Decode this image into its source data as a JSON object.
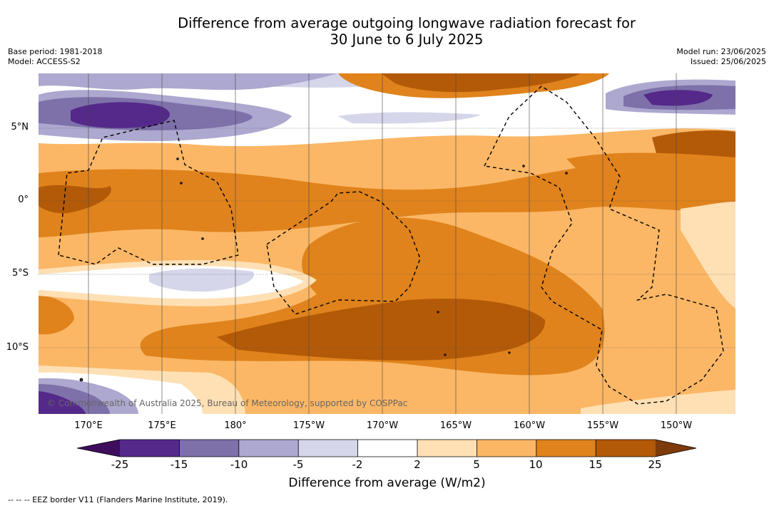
{
  "title": "Difference from average outgoing longwave radiation forecast for\n30 June to 6 July 2025",
  "left_info": [
    "Base period: 1981-2018",
    "Model: ACCESS-S2"
  ],
  "right_info": [
    "Model run: 23/06/2025",
    "Issued: 25/06/2025"
  ],
  "lat_labels": [
    "5°N",
    "0°",
    "5°S",
    "10°S"
  ],
  "lon_labels": [
    "170°E",
    "175°E",
    "180°",
    "175°W",
    "170°W",
    "165°W",
    "160°W",
    "155°W",
    "150°W"
  ],
  "colorbar": {
    "ticks": [
      "-25",
      "-15",
      "-10",
      "-5",
      "-2",
      "2",
      "5",
      "10",
      "15",
      "25"
    ],
    "colors": [
      "#3f0d5e",
      "#54298a",
      "#7e71aa",
      "#ada8cf",
      "#d6d6ea",
      "#ffffff",
      "#fee0b4",
      "#fbb766",
      "#e0831c",
      "#b35a08",
      "#7e3a0a"
    ],
    "label": "Difference from average (W/m2)"
  },
  "legend_note": "--  --  -- EEZ border V11 (Flanders Marine Institute, 2019).",
  "copyright": "© Commonwealth of Australia 2025, Bureau of Meteorology, supported by COSPPac"
}
